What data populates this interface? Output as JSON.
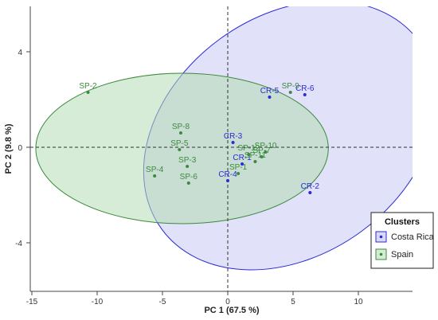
{
  "chart_data": {
    "type": "scatter",
    "xlabel": "PC 1 (67.5 %)",
    "ylabel": "PC 2 (9.8 %)",
    "xlim": [
      -15,
      14
    ],
    "ylim": [
      -6.2,
      6
    ],
    "x_ticks": [
      -15,
      -10,
      -5,
      0,
      5,
      10
    ],
    "y_ticks": [
      -4,
      0,
      4
    ],
    "grid": false,
    "reference_lines": {
      "x": 0,
      "y": 0
    },
    "legend": {
      "title": "Clusters",
      "placement": "bottom-right",
      "entries": [
        {
          "name": "Costa Rica",
          "color": "#2a2ad6"
        },
        {
          "name": "Spain",
          "color": "#3c8a3c"
        }
      ]
    },
    "series": [
      {
        "name": "Costa Rica",
        "color": "#2a2ad6",
        "fill": "#c8c8f4",
        "points": [
          {
            "label": "CR-1",
            "x": 1.1,
            "y": -0.7
          },
          {
            "label": "CR-2",
            "x": 6.3,
            "y": -1.9
          },
          {
            "label": "CR-3",
            "x": 0.4,
            "y": 0.2
          },
          {
            "label": "CR-4",
            "x": 0.0,
            "y": -1.4
          },
          {
            "label": "CR-5",
            "x": 3.2,
            "y": 2.1
          },
          {
            "label": "CR-6",
            "x": 5.9,
            "y": 2.2
          }
        ]
      },
      {
        "name": "Spain",
        "color": "#3c8a3c",
        "fill": "#b4dcb4",
        "points": [
          {
            "label": "SP-1",
            "x": 0.8,
            "y": -1.1
          },
          {
            "label": "SP-2",
            "x": -10.7,
            "y": 2.3
          },
          {
            "label": "SP-3",
            "x": -3.1,
            "y": -0.8
          },
          {
            "label": "SP-4",
            "x": -5.6,
            "y": -1.2
          },
          {
            "label": "SP-5",
            "x": -3.7,
            "y": -0.1
          },
          {
            "label": "SP-6",
            "x": -3.0,
            "y": -1.5
          },
          {
            "label": "SP-8",
            "x": -3.6,
            "y": 0.6
          },
          {
            "label": "SP-9",
            "x": 4.8,
            "y": 2.3
          },
          {
            "label": "SP-10",
            "x": 2.9,
            "y": -0.2
          },
          {
            "label": "SP-11",
            "x": 2.1,
            "y": -0.6
          },
          {
            "label": "SP-12",
            "x": 1.6,
            "y": -0.3
          },
          {
            "label": "SP-7",
            "x": 2.6,
            "y": -0.4
          }
        ]
      }
    ],
    "ellipses": [
      {
        "series": "Costa Rica",
        "cx": 4.8,
        "cy": 0.5,
        "rx": 12.2,
        "ry": 5.0,
        "rotation_deg": -36
      },
      {
        "series": "Spain",
        "cx": -3.5,
        "cy": -0.05,
        "rx": 11.2,
        "ry": 3.15,
        "rotation_deg": 0
      }
    ]
  }
}
